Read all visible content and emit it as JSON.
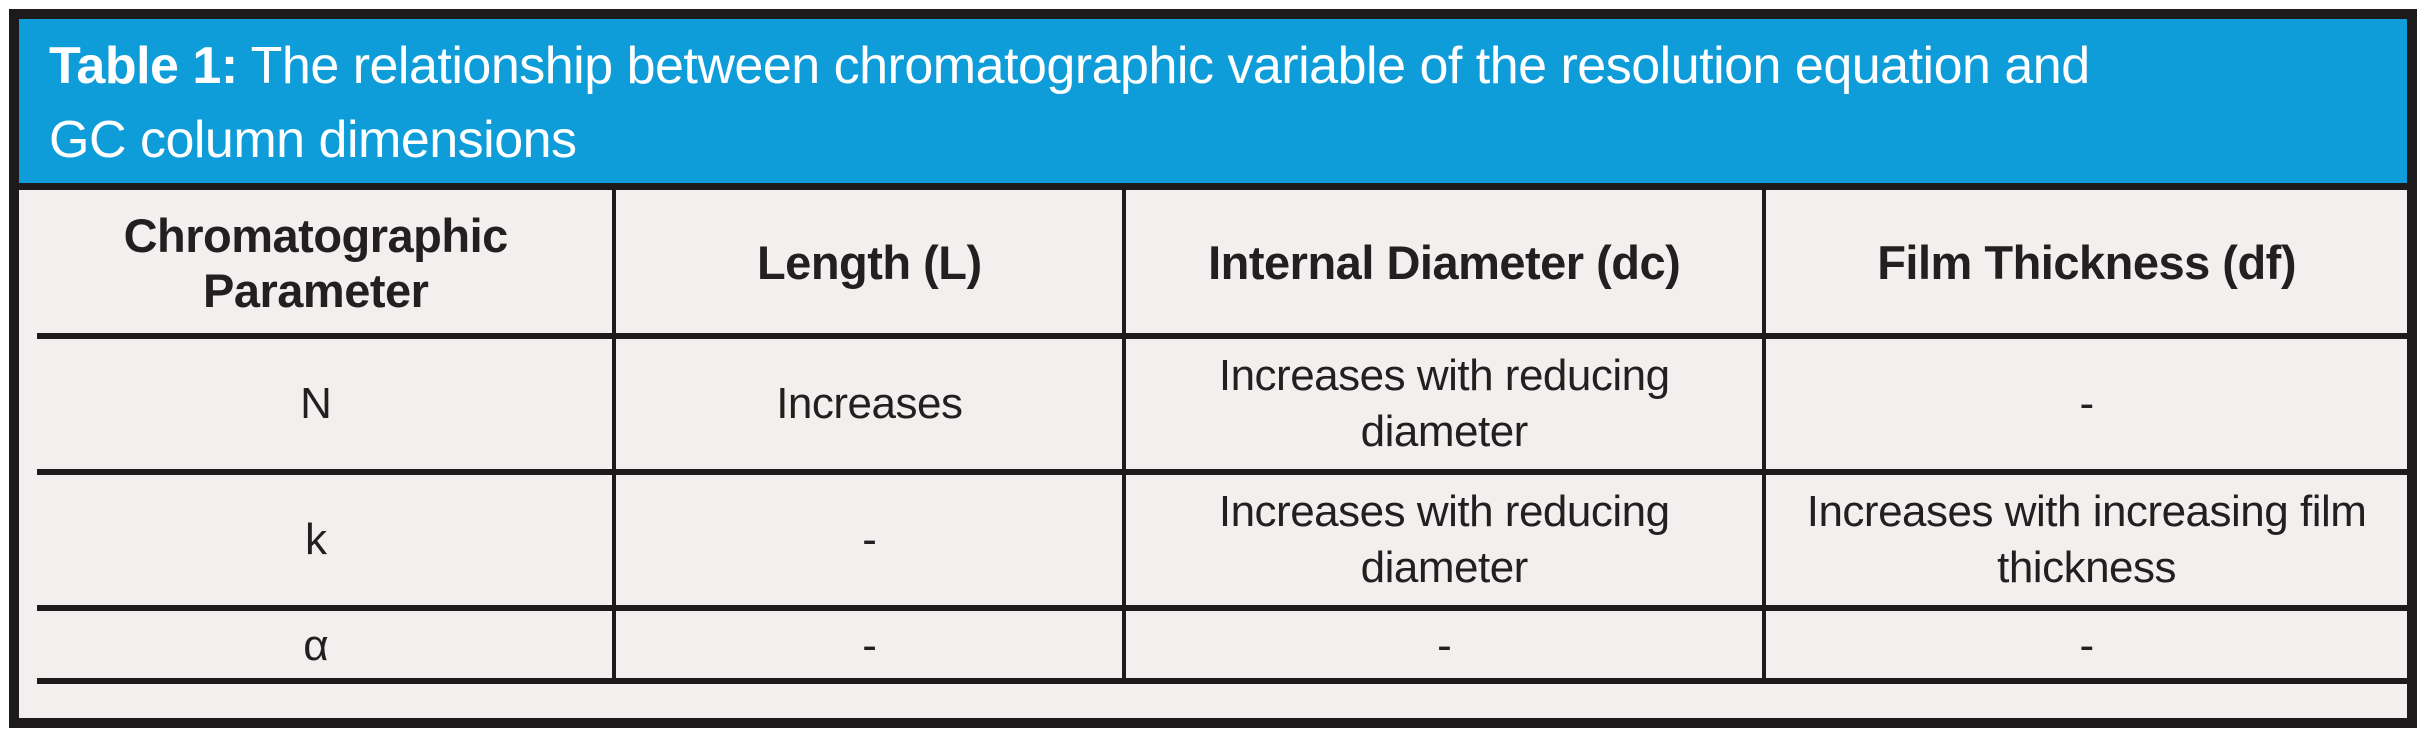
{
  "caption": {
    "label": "Table 1:",
    "line1_rest": " The relationship between chromatographic variable of the resolution equation and",
    "line2": "GC column dimensions"
  },
  "colors": {
    "banner_blue": "#0f9dda",
    "cell_background": "#f1f0ee",
    "rule_black": "#1d1a1b",
    "caption_text": "#ffffff",
    "body_text": "#231f20"
  },
  "table": {
    "header": [
      "Chromatographic Parameter",
      "Length (L)",
      "Internal Diameter (dc)",
      "Film Thickness (df)"
    ],
    "rows": [
      [
        "N",
        "Increases",
        "Increases with reducing diameter",
        "-"
      ],
      [
        "k",
        "-",
        "Increases with reducing diameter",
        "Increases with increasing film thickness"
      ],
      [
        "α",
        "-",
        "-",
        "-"
      ]
    ]
  }
}
